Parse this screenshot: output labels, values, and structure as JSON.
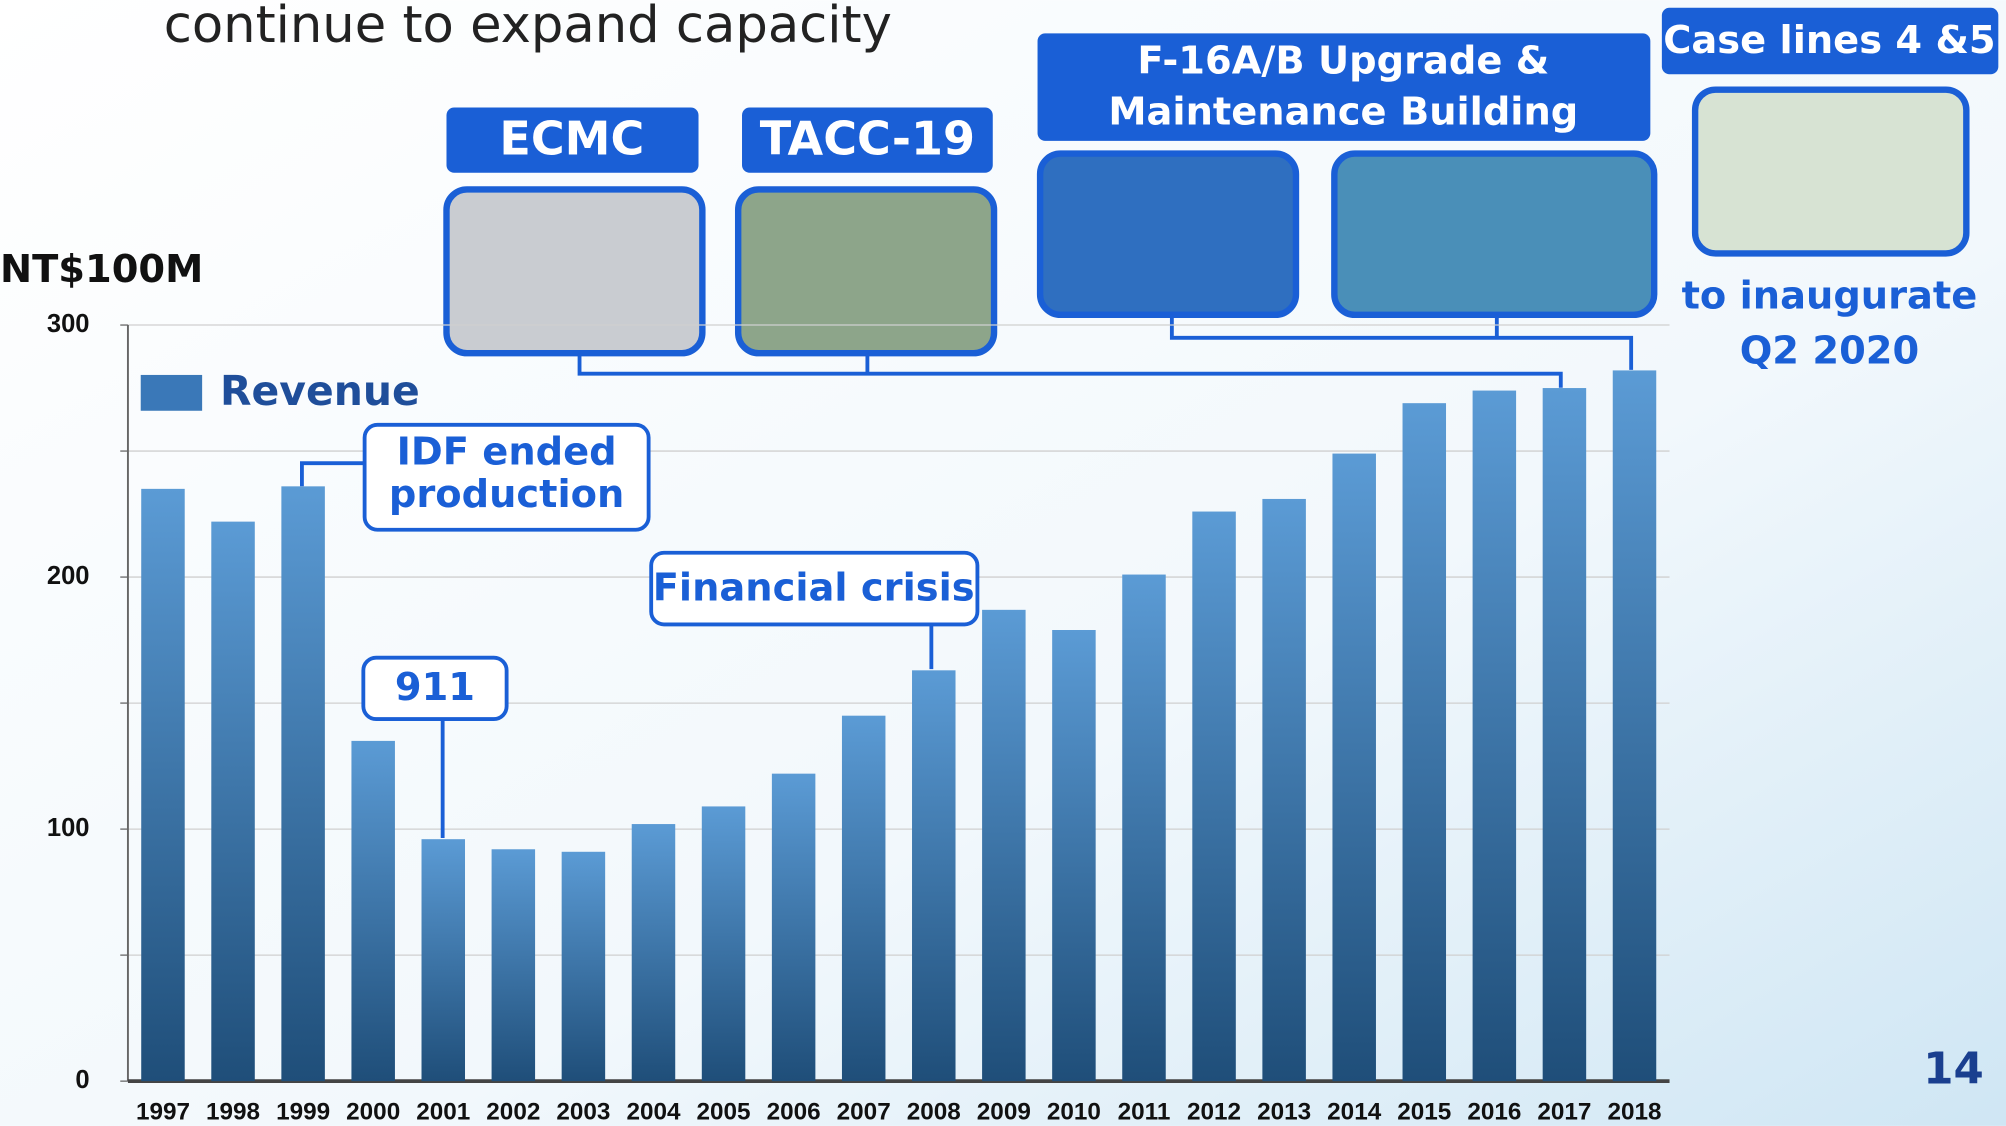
{
  "title": "continue to expand capacity",
  "page_number": "14",
  "buildings": {
    "ecmc": "ECMC",
    "tacc": "TACC-19",
    "f16": [
      "F-16A/B Upgrade &",
      "Maintenance Building"
    ],
    "case": "Case lines 4 &5",
    "inaugurate": [
      "to inaugurate",
      "Q2 2020"
    ]
  },
  "chart_data": {
    "type": "bar",
    "y_label": "NT$100M",
    "categories": [
      "1997",
      "1998",
      "1999",
      "2000",
      "2001",
      "2002",
      "2003",
      "2004",
      "2005",
      "2006",
      "2007",
      "2008",
      "2009",
      "2010",
      "2011",
      "2012",
      "2013",
      "2014",
      "2015",
      "2016",
      "2017",
      "2018"
    ],
    "series": [
      {
        "name": "Revenue",
        "color": "#3a78b8",
        "values": [
          235,
          222,
          236,
          135,
          96,
          92,
          91,
          102,
          109,
          122,
          145,
          163,
          187,
          179,
          201,
          226,
          231,
          249,
          269,
          274,
          275,
          282
        ]
      }
    ],
    "ylim": [
      0,
      300
    ],
    "yticks": [
      0,
      100,
      200,
      300
    ],
    "minor_yticks": [
      50,
      150,
      250
    ],
    "grid": true,
    "annotations": {
      "idf": [
        "IDF ended",
        "production"
      ],
      "911": "911",
      "crisis": "Financial crisis"
    }
  }
}
